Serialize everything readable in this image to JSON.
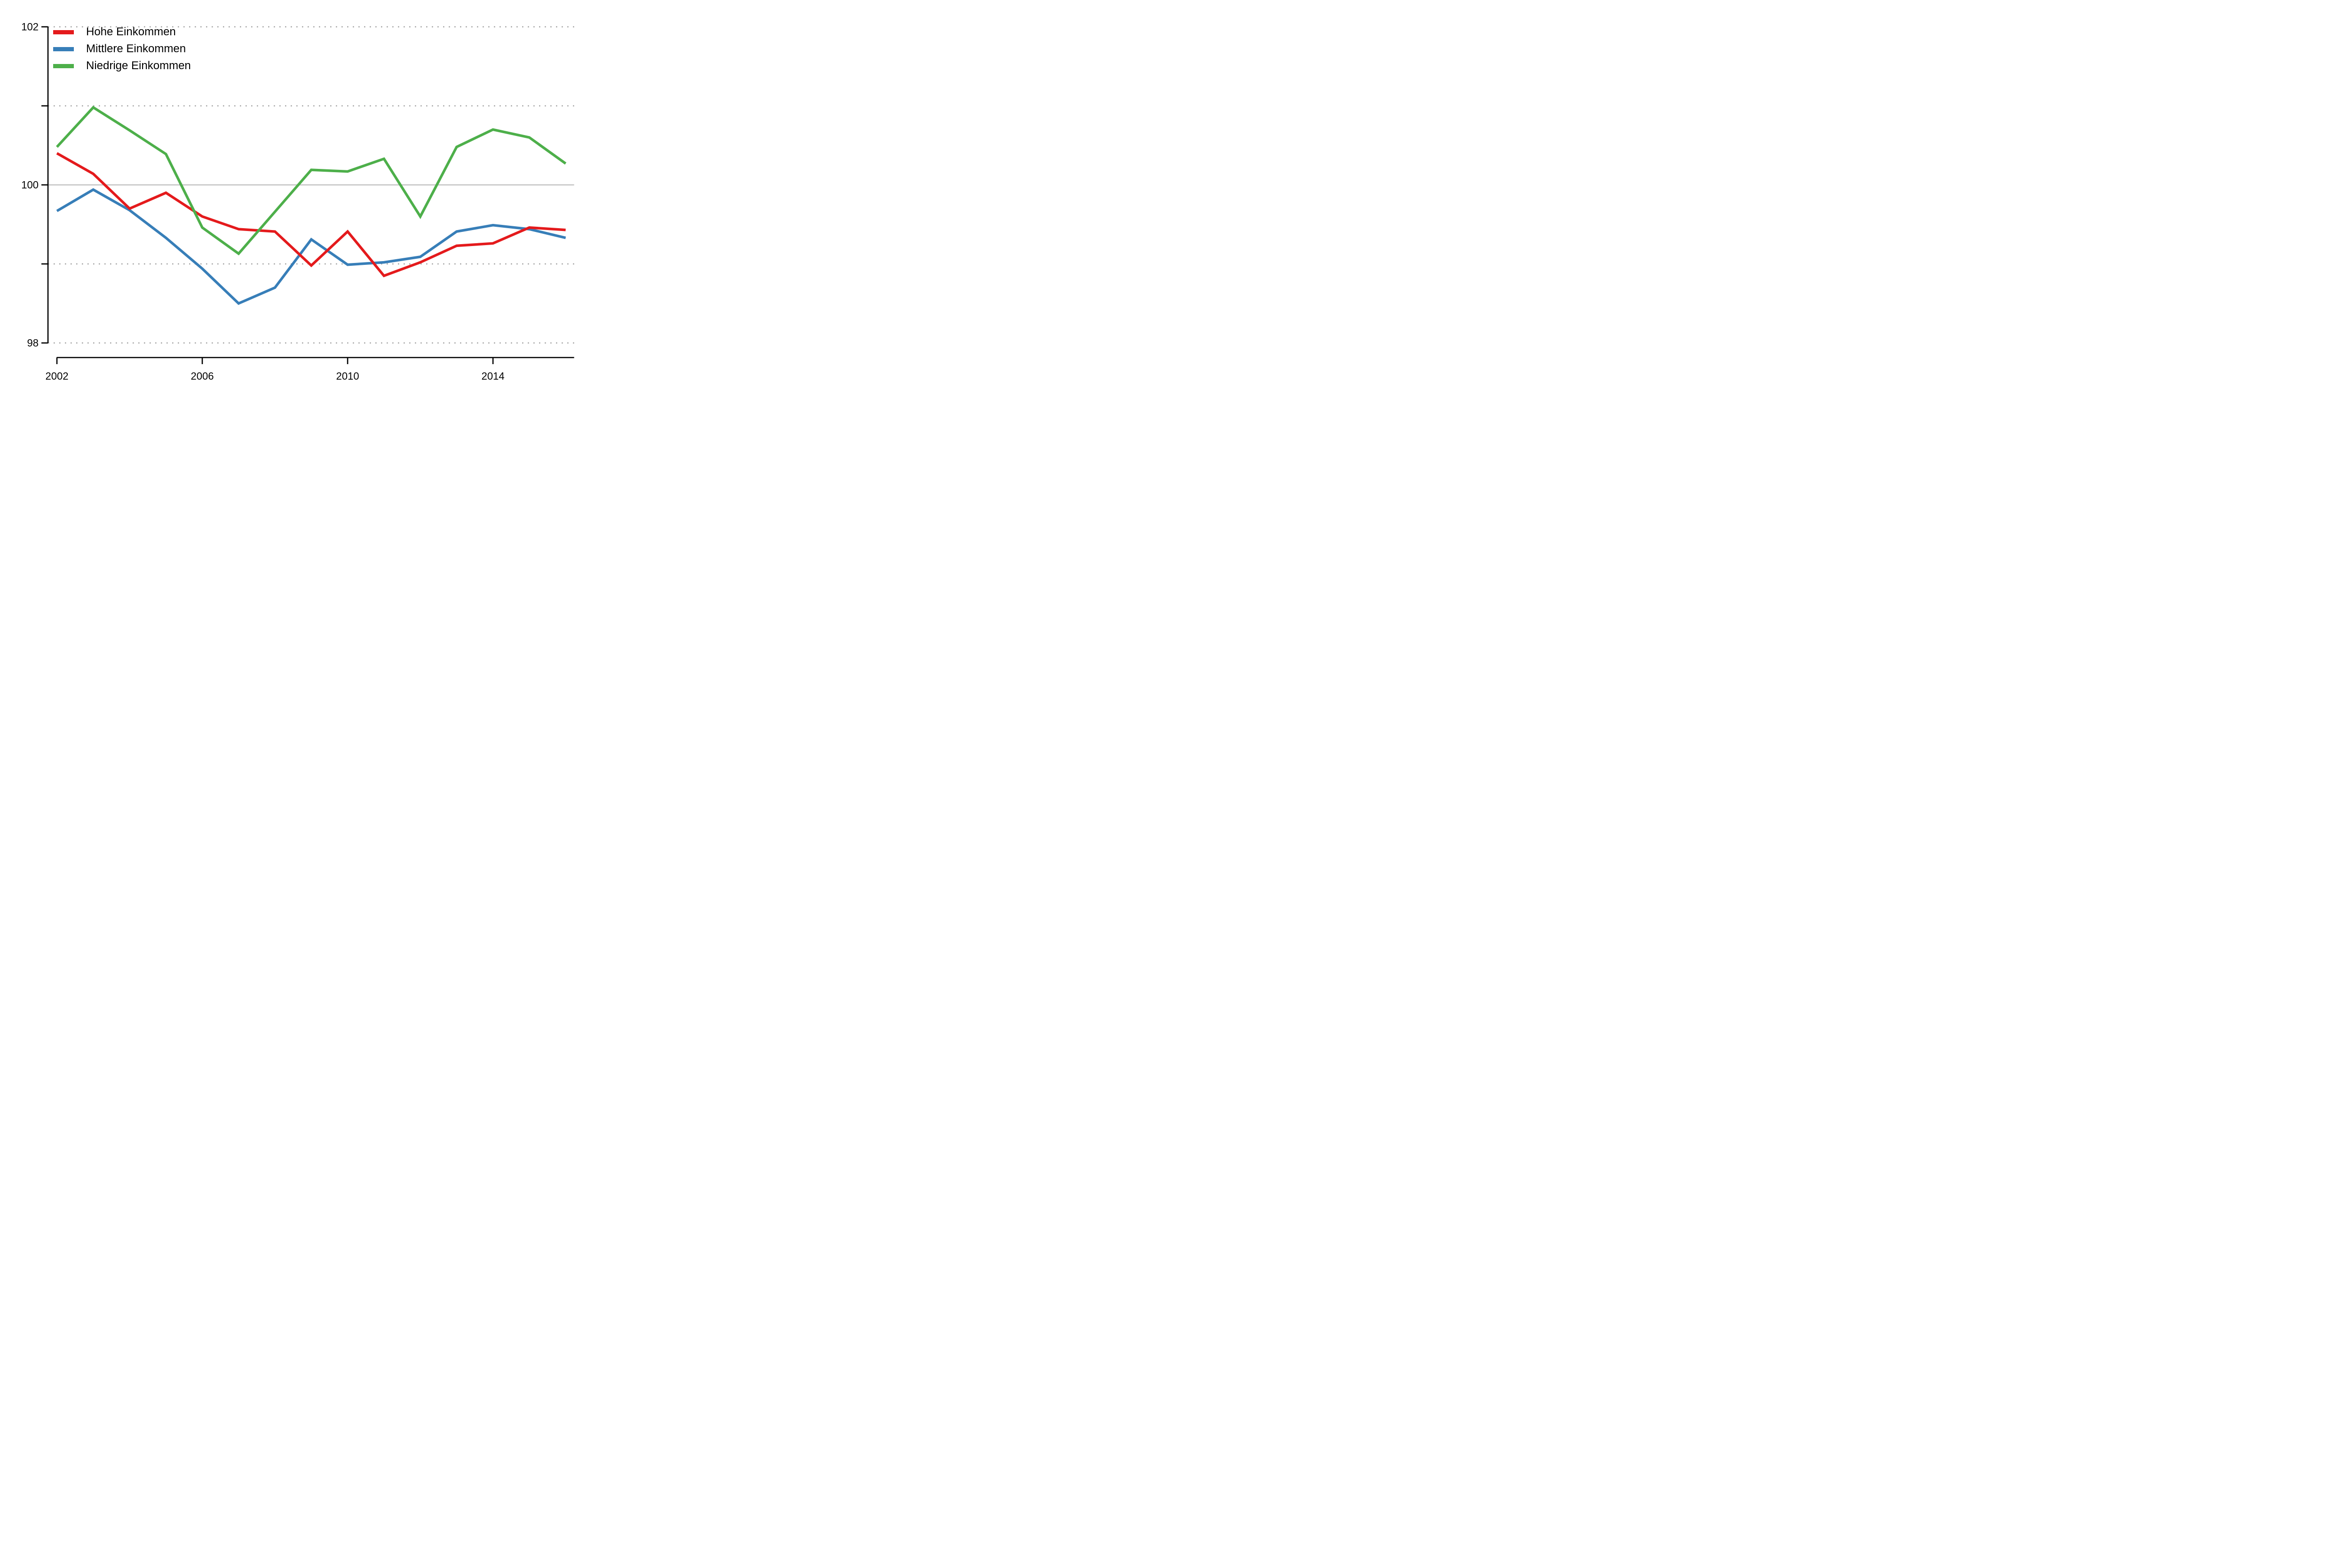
{
  "chart_data": {
    "type": "line",
    "title": "",
    "xlabel": "",
    "ylabel": "",
    "x": [
      2002,
      2003,
      2004,
      2005,
      2006,
      2007,
      2008,
      2009,
      2010,
      2011,
      2012,
      2013,
      2014,
      2015,
      2016
    ],
    "x_tick_labels": [
      "2002",
      "2006",
      "2010",
      "2014"
    ],
    "x_ticks": [
      2002,
      2006,
      2010,
      2014
    ],
    "y_tick_labels": [
      "98",
      "100",
      "102"
    ],
    "y_ticks_labeled": [
      98,
      100,
      102
    ],
    "y_ticks_minor": [
      99,
      101
    ],
    "ylim": [
      98,
      102
    ],
    "grid": {
      "dotted_at": [
        98,
        99,
        101,
        102
      ],
      "solid_at": [
        100
      ],
      "dotted_color": "#a0a0a0",
      "solid_color": "#c4c4c4"
    },
    "legend_position": "top-left-inside",
    "axis_color": "#000000",
    "series": [
      {
        "name": "Hohe Einkommen",
        "color": "#e41a1c",
        "values": [
          100.4,
          100.14,
          99.7,
          99.9,
          99.6,
          99.44,
          99.41,
          98.98,
          99.41,
          98.85,
          99.02,
          99.23,
          99.26,
          99.46,
          99.43
        ]
      },
      {
        "name": "Mittlere Einkommen",
        "color": "#377eb8",
        "values": [
          99.67,
          99.94,
          99.68,
          99.33,
          98.94,
          98.5,
          98.7,
          99.31,
          98.99,
          99.02,
          99.09,
          99.41,
          99.49,
          99.44,
          99.33
        ]
      },
      {
        "name": "Niedrige Einkommen",
        "color": "#4daf4a",
        "values": [
          100.48,
          100.98,
          100.69,
          100.39,
          99.46,
          99.13,
          99.66,
          100.19,
          100.17,
          100.33,
          99.6,
          100.48,
          100.7,
          100.6,
          100.27
        ]
      }
    ]
  }
}
